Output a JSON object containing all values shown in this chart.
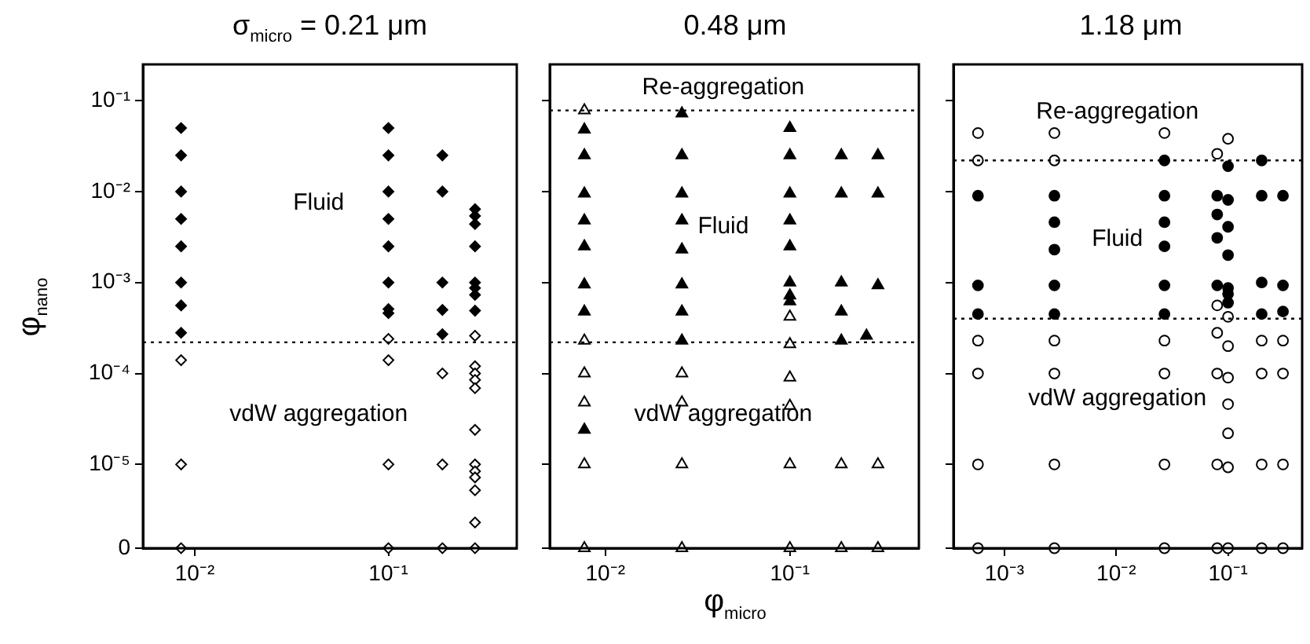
{
  "chart_data": [
    {
      "type": "scatter",
      "title": "σ$_{micro}$ = 0.21 μm",
      "ylabel": "φ$_{nano}$",
      "log": "xy",
      "marker": "diamond",
      "xlim": [
        0.0054,
        0.46
      ],
      "xticks": [
        {
          "value": 0.01,
          "label": "10⁻²"
        },
        {
          "value": 0.1,
          "label": "10⁻¹"
        }
      ],
      "ylim": [
        1.2e-06,
        0.25
      ],
      "yticks": [
        {
          "value": 1.2e-06,
          "label": "0"
        },
        {
          "value": 1e-05,
          "label": "10⁻⁵"
        },
        {
          "value": 0.0001,
          "label": "10⁻⁴"
        },
        {
          "value": 0.001,
          "label": "10⁻³"
        },
        {
          "value": 0.01,
          "label": "10⁻²"
        },
        {
          "value": 0.1,
          "label": "10⁻¹"
        }
      ],
      "series": [
        {
          "color": "#000000",
          "x": [
            0.0085,
            0.0085,
            0.0085,
            0.0085,
            0.0085,
            0.0085,
            0.0085,
            0.0085,
            0.1,
            0.1,
            0.1,
            0.1,
            0.1,
            0.1,
            0.1,
            0.1,
            0.19,
            0.19,
            0.19,
            0.19,
            0.19,
            0.28,
            0.28,
            0.28,
            0.28,
            0.28,
            0.28,
            0.28,
            0.28
          ],
          "values": [
            0.05,
            0.025,
            0.01,
            0.005,
            0.0025,
            0.001,
            0.00056,
            0.00028,
            0.05,
            0.025,
            0.01,
            0.005,
            0.0025,
            0.001,
            0.00051,
            0.00046,
            0.025,
            0.01,
            0.001,
            0.0005,
            0.00027,
            0.0064,
            0.0054,
            0.0044,
            0.0025,
            0.001,
            0.00087,
            0.00073,
            0.00049
          ]
        },
        {
          "color": "#ffffff",
          "x": [
            0.0085,
            0.0085,
            0.0085,
            0.1,
            0.1,
            0.1,
            0.1,
            0.19,
            0.19,
            0.19,
            0.28,
            0.28,
            0.28,
            0.28,
            0.28,
            0.28,
            0.28,
            0.28,
            0.28,
            0.28,
            0.28,
            0.28
          ],
          "values": [
            0.00014,
            1e-05,
            1.2e-06,
            0.00024,
            0.00014,
            1e-05,
            1.2e-06,
            0.0001,
            1e-05,
            1.2e-06,
            0.00026,
            0.00012,
            0.0001,
            8.5e-05,
            6.9e-05,
            2.4e-05,
            1e-05,
            8.4e-06,
            7.2e-06,
            5.2e-06,
            2.3e-06,
            1.2e-06
          ]
        }
      ],
      "ref_lines": [
        {
          "axis": "y",
          "value": 0.00022,
          "line_style": "dotted"
        }
      ],
      "annotations": [
        "Fluid",
        "vdW aggregation"
      ]
    },
    {
      "type": "scatter",
      "title": "0.48 μm",
      "xlabel": "φ$_{micro}$",
      "log": "xy",
      "marker": "triangle",
      "tick_labels": "x",
      "xlim": [
        0.005,
        0.5
      ],
      "xticks": [
        {
          "value": 0.01,
          "label": "10⁻²"
        },
        {
          "value": 0.1,
          "label": "10⁻¹"
        }
      ],
      "ylim": [
        1.2e-06,
        0.25
      ],
      "yticks": [
        {
          "value": 1.2e-06,
          "label": null
        },
        {
          "value": 1e-05,
          "label": null
        },
        {
          "value": 0.0001,
          "label": null
        },
        {
          "value": 0.001,
          "label": null
        },
        {
          "value": 0.01,
          "label": null
        },
        {
          "value": 0.1,
          "label": null
        }
      ],
      "series": [
        {
          "color": "#000000",
          "x": [
            0.0077,
            0.0077,
            0.0077,
            0.0077,
            0.0077,
            0.0077,
            0.0077,
            0.0077,
            0.026,
            0.026,
            0.026,
            0.026,
            0.026,
            0.026,
            0.026,
            0.026,
            0.1,
            0.1,
            0.1,
            0.1,
            0.1,
            0.1,
            0.1,
            0.1,
            0.19,
            0.19,
            0.19,
            0.19,
            0.19,
            0.26,
            0.3,
            0.3,
            0.3
          ],
          "values": [
            0.048,
            0.025,
            0.0095,
            0.0048,
            0.0025,
            0.00095,
            0.00048,
            2.4e-05,
            0.072,
            0.025,
            0.0095,
            0.0048,
            0.0023,
            0.00095,
            0.00048,
            0.00023,
            0.05,
            0.025,
            0.0095,
            0.0048,
            0.0025,
            0.001,
            0.00072,
            0.00062,
            0.025,
            0.0095,
            0.001,
            0.00048,
            0.00023,
            0.00026,
            0.025,
            0.0095,
            0.00093
          ]
        },
        {
          "color": "#ffffff",
          "x": [
            0.0077,
            0.0077,
            0.0077,
            0.0077,
            0.0077,
            0.0077,
            0.026,
            0.026,
            0.026,
            0.026,
            0.1,
            0.1,
            0.1,
            0.1,
            0.1,
            0.1,
            0.19,
            0.19,
            0.3,
            0.3
          ],
          "values": [
            0.078,
            0.00023,
            0.0001,
            4.8e-05,
            1e-05,
            1.2e-06,
            0.0001,
            4.8e-05,
            1e-05,
            1.2e-06,
            0.00042,
            0.00021,
            9e-05,
            4.4e-05,
            1e-05,
            1.2e-06,
            1e-05,
            1.2e-06,
            1e-05,
            1.2e-06
          ]
        }
      ],
      "ref_lines": [
        {
          "axis": "y",
          "value": 0.078,
          "line_style": "dotted"
        },
        {
          "axis": "y",
          "value": 0.00022,
          "line_style": "dotted"
        }
      ],
      "annotations": [
        "Re-aggregation",
        "Fluid",
        "vdW aggregation"
      ]
    },
    {
      "type": "scatter",
      "title": "1.18 μm",
      "log": "xy",
      "marker": "circle",
      "tick_labels": "x",
      "xlim": [
        0.00035,
        0.46
      ],
      "xticks": [
        {
          "value": 0.001,
          "label": "10⁻³"
        },
        {
          "value": 0.01,
          "label": "10⁻²"
        },
        {
          "value": 0.1,
          "label": "10⁻¹"
        }
      ],
      "ylim": [
        1.2e-06,
        0.25
      ],
      "yticks": [
        {
          "value": 1.2e-06,
          "label": null
        },
        {
          "value": 1e-05,
          "label": null
        },
        {
          "value": 0.0001,
          "label": null
        },
        {
          "value": 0.001,
          "label": null
        },
        {
          "value": 0.01,
          "label": null
        },
        {
          "value": 0.1,
          "label": null
        }
      ],
      "series": [
        {
          "color": "#000000",
          "x": [
            0.00058,
            0.00058,
            0.00058,
            0.0028,
            0.0028,
            0.0028,
            0.0028,
            0.0028,
            0.027,
            0.027,
            0.027,
            0.027,
            0.027,
            0.027,
            0.08,
            0.08,
            0.08,
            0.08,
            0.1,
            0.1,
            0.1,
            0.1,
            0.1,
            0.1,
            0.1,
            0.2,
            0.2,
            0.2,
            0.2,
            0.31,
            0.31,
            0.31
          ],
          "values": [
            0.009,
            0.00093,
            0.00045,
            0.009,
            0.0046,
            0.0023,
            0.00093,
            0.00045,
            0.022,
            0.009,
            0.0046,
            0.0025,
            0.00093,
            0.00045,
            0.009,
            0.0056,
            0.0031,
            0.00093,
            0.019,
            0.0081,
            0.0041,
            0.002,
            0.00087,
            0.00075,
            0.0006,
            0.022,
            0.009,
            0.001,
            0.00045,
            0.009,
            0.00093,
            0.00048
          ]
        },
        {
          "color": "#ffffff",
          "x": [
            0.00058,
            0.00058,
            0.00058,
            0.00058,
            0.00058,
            0.00058,
            0.0028,
            0.0028,
            0.0028,
            0.0028,
            0.0028,
            0.0028,
            0.027,
            0.027,
            0.027,
            0.027,
            0.027,
            0.08,
            0.08,
            0.08,
            0.08,
            0.08,
            0.08,
            0.1,
            0.1,
            0.1,
            0.1,
            0.1,
            0.1,
            0.1,
            0.1,
            0.2,
            0.2,
            0.2,
            0.2,
            0.31,
            0.31,
            0.31,
            0.31
          ],
          "values": [
            0.044,
            0.022,
            0.00023,
            0.0001,
            1e-05,
            1.2e-06,
            0.044,
            0.022,
            0.00023,
            0.0001,
            1e-05,
            1.2e-06,
            0.044,
            0.00023,
            0.0001,
            1e-05,
            1.2e-06,
            0.026,
            0.00056,
            0.00028,
            0.0001,
            1e-05,
            1.2e-06,
            0.038,
            0.00042,
            0.0002,
            9e-05,
            4.6e-05,
            2.2e-05,
            9.3e-06,
            1.2e-06,
            0.00023,
            0.0001,
            1e-05,
            1.2e-06,
            0.00023,
            0.0001,
            1e-05,
            1.2e-06
          ]
        }
      ],
      "ref_lines": [
        {
          "axis": "y",
          "value": 0.022,
          "line_style": "dotted"
        },
        {
          "axis": "y",
          "value": 0.0004,
          "line_style": "dotted"
        }
      ],
      "annotations": [
        "Re-aggregation",
        "Fluid",
        "vdW aggregation"
      ]
    }
  ]
}
